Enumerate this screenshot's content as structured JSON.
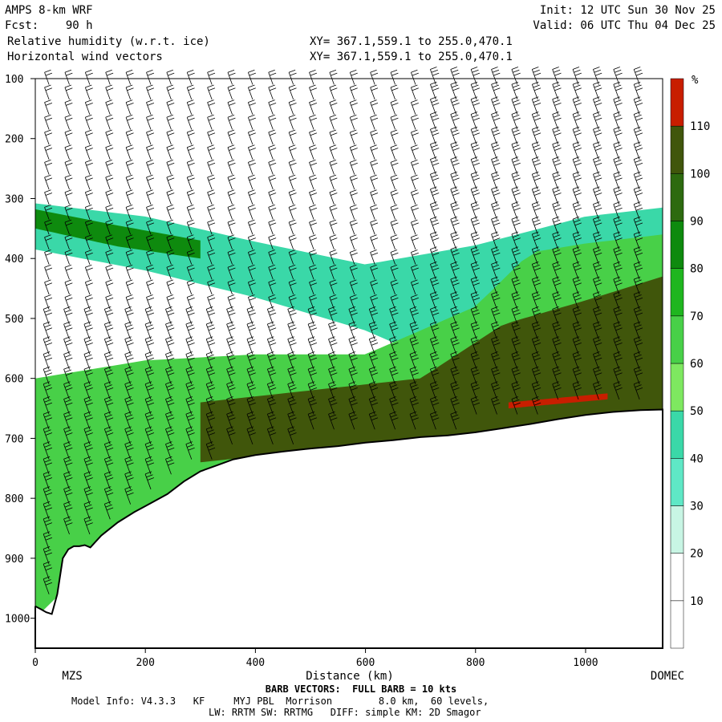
{
  "header": {
    "model": "AMPS 8-km WRF",
    "fcst_label": "Fcst:",
    "fcst_value": "90 h",
    "field1": "Relative humidity (w.r.t. ice)",
    "field2": "Horizontal wind vectors",
    "xy1": "XY= 367.1,559.1 to 255.0,470.1",
    "xy2": "XY= 367.1,559.1 to 255.0,470.1",
    "init": "Init: 12 UTC Sun 30 Nov 25",
    "valid": "Valid: 06 UTC Thu 04 Dec 25"
  },
  "footer": {
    "left_site": "MZS",
    "right_site": "DOMEC",
    "barb_note": "BARB VECTORS:  FULL BARB = 10 kts",
    "model_info": "Model Info: V4.3.3   KF     MYJ PBL  Morrison        8.0 km,  60 levels,",
    "physics": "LW: RRTM SW: RRTMG   DIFF: simple KM: 2D Smagor"
  },
  "chart_data": {
    "type": "heatmap",
    "xlabel": "Distance (km)",
    "ylabel": "",
    "xlim": [
      0,
      1140
    ],
    "ylim": [
      1050,
      100
    ],
    "x_ticks": [
      0,
      200,
      400,
      600,
      800,
      1000
    ],
    "y_ticks": [
      100,
      200,
      300,
      400,
      500,
      600,
      700,
      800,
      900,
      1000
    ],
    "colorbar": {
      "unit": "%",
      "levels": [
        10,
        20,
        30,
        40,
        50,
        60,
        70,
        80,
        90,
        100,
        110
      ],
      "colors": [
        "#ffffff",
        "#ffffff",
        "#c8f5e4",
        "#5fe8c6",
        "#3ad8a8",
        "#7ee860",
        "#48d048",
        "#1fb61f",
        "#0e8a0e",
        "#2d6a0f",
        "#40560b",
        "#c81e00"
      ]
    },
    "terrain": {
      "x": [
        0,
        10,
        20,
        30,
        40,
        50,
        60,
        70,
        80,
        90,
        100,
        120,
        150,
        180,
        210,
        240,
        270,
        300,
        330,
        360,
        400,
        450,
        500,
        550,
        600,
        650,
        700,
        750,
        800,
        850,
        900,
        950,
        1000,
        1050,
        1100,
        1140
      ],
      "p": [
        980,
        985,
        990,
        993,
        960,
        900,
        885,
        880,
        880,
        878,
        882,
        862,
        840,
        823,
        808,
        793,
        772,
        755,
        745,
        735,
        728,
        722,
        717,
        713,
        707,
        703,
        698,
        695,
        690,
        683,
        676,
        668,
        661,
        656,
        653,
        652
      ]
    },
    "rh_regions": [
      {
        "name": "upper-band",
        "top": [
          [
            0,
            308
          ],
          [
            200,
            330
          ],
          [
            400,
            372
          ],
          [
            600,
            410
          ],
          [
            800,
            378
          ],
          [
            1000,
            330
          ],
          [
            1140,
            315
          ]
        ],
        "bottom": [
          [
            0,
            385
          ],
          [
            200,
            420
          ],
          [
            400,
            465
          ],
          [
            600,
            520
          ],
          [
            800,
            600
          ],
          [
            1000,
            640
          ],
          [
            1140,
            640
          ]
        ],
        "level": 40
      },
      {
        "name": "upper-core",
        "top": [
          [
            0,
            318
          ],
          [
            150,
            345
          ],
          [
            300,
            370
          ]
        ],
        "bottom": [
          [
            0,
            350
          ],
          [
            150,
            380
          ],
          [
            300,
            400
          ]
        ],
        "level": 80
      },
      {
        "name": "lower-moist",
        "top": [
          [
            0,
            600
          ],
          [
            200,
            570
          ],
          [
            400,
            560
          ],
          [
            600,
            560
          ],
          [
            800,
            480
          ],
          [
            900,
            390
          ],
          [
            1000,
            375
          ],
          [
            1140,
            360
          ]
        ],
        "bottom": [
          [
            0,
            1000
          ],
          [
            200,
            820
          ],
          [
            400,
            730
          ],
          [
            600,
            715
          ],
          [
            800,
            690
          ],
          [
            1000,
            660
          ],
          [
            1140,
            650
          ]
        ],
        "level": 60
      },
      {
        "name": "lower-core",
        "top": [
          [
            300,
            640
          ],
          [
            500,
            620
          ],
          [
            700,
            600
          ],
          [
            850,
            510
          ],
          [
            1000,
            470
          ],
          [
            1140,
            430
          ]
        ],
        "bottom": [
          [
            300,
            740
          ],
          [
            500,
            720
          ],
          [
            700,
            700
          ],
          [
            850,
            688
          ],
          [
            1000,
            662
          ],
          [
            1140,
            652
          ]
        ],
        "level": 100
      },
      {
        "name": "supersat-streak",
        "top": [
          [
            860,
            640
          ],
          [
            1040,
            625
          ]
        ],
        "bottom": [
          [
            860,
            650
          ],
          [
            1040,
            635
          ]
        ],
        "level": 110
      }
    ],
    "wind_barbs": {
      "note": "Wind barbs on pressure levels every ~25 hPa, mostly westerly aloft, stronger and denser near the terrain on the right."
    }
  }
}
